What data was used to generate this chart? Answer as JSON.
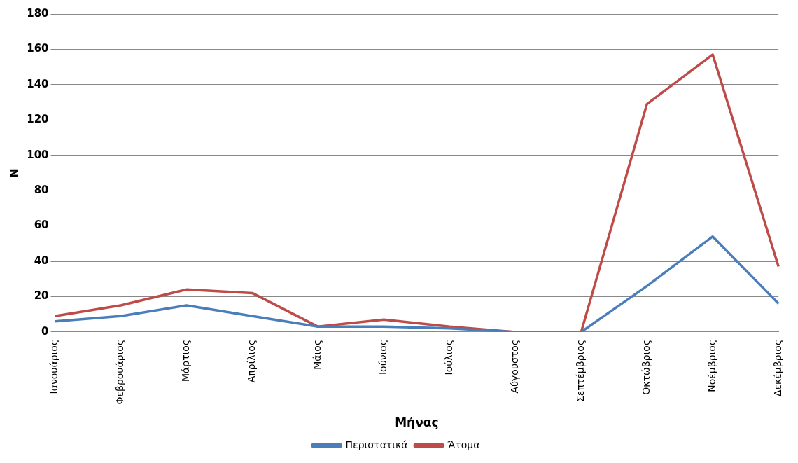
{
  "chart_data": {
    "type": "line",
    "xlabel": "Μήνας",
    "ylabel": "N",
    "categories": [
      "Ιανουάριος",
      "Φεβρουάριος",
      "Μάρτιος",
      "Απρίλιος",
      "Μάιος",
      "Ιούνιος",
      "Ιούλιος",
      "Αύγουστος",
      "Σεπτέμβριος",
      "Οκτώβριος",
      "Νοέμβριος",
      "Δεκέμβριος"
    ],
    "series": [
      {
        "name": "Περιστατικά",
        "color": "#4a7ebb",
        "values": [
          6,
          9,
          15,
          9,
          3,
          3,
          2,
          0,
          0,
          26,
          54,
          16
        ]
      },
      {
        "name": "Ἄτομα",
        "color": "#be4b48",
        "values": [
          9,
          15,
          24,
          22,
          3,
          7,
          3,
          0,
          0,
          129,
          157,
          37
        ]
      }
    ],
    "ylim": [
      0,
      180
    ],
    "yticks": [
      0,
      20,
      40,
      60,
      80,
      100,
      120,
      140,
      160,
      180
    ],
    "grid": "y",
    "legend": "bottom",
    "marker": "none",
    "line_style": "solid"
  }
}
